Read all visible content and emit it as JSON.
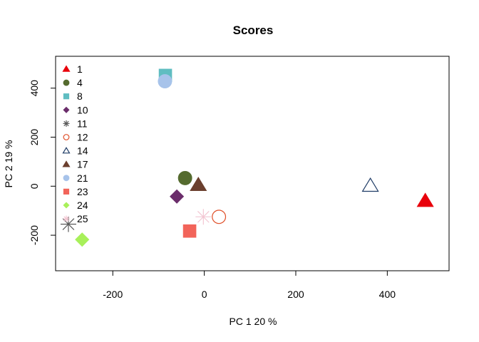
{
  "chart_data": {
    "type": "scatter",
    "title": "Scores",
    "xlabel": "PC 1 20 %",
    "ylabel": "PC 2 19 %",
    "xlim": [
      -325,
      535
    ],
    "ylim": [
      -345,
      530
    ],
    "xticks": [
      -200,
      0,
      200,
      400
    ],
    "yticks": [
      -200,
      0,
      200,
      400
    ],
    "grid": false,
    "legend": "top-left",
    "series": [
      {
        "name": "1",
        "color": "#E8000B",
        "marker": "triangle-filled",
        "x": 483,
        "y": -60
      },
      {
        "name": "4",
        "color": "#556B2F",
        "marker": "circle-filled",
        "x": -42,
        "y": 33
      },
      {
        "name": "8",
        "color": "#5FBDC1",
        "marker": "square-filled",
        "x": -85,
        "y": 452
      },
      {
        "name": "10",
        "color": "#6B2D6B",
        "marker": "diamond-filled",
        "x": -60,
        "y": -42
      },
      {
        "name": "11",
        "color": "#5A5A5A",
        "marker": "star",
        "x": -297,
        "y": -155
      },
      {
        "name": "12",
        "color": "#E0502A",
        "marker": "circle-open",
        "x": 32,
        "y": -125
      },
      {
        "name": "14",
        "color": "#1F3C66",
        "marker": "triangle-open",
        "x": 363,
        "y": 2
      },
      {
        "name": "17",
        "color": "#6B3F2E",
        "marker": "triangle-filled",
        "x": -13,
        "y": 5
      },
      {
        "name": "21",
        "color": "#A7C3EA",
        "marker": "circle-filled",
        "x": -86,
        "y": 428
      },
      {
        "name": "23",
        "color": "#F2645A",
        "marker": "square-filled",
        "x": -32,
        "y": -183
      },
      {
        "name": "24",
        "color": "#A8F05A",
        "marker": "diamond-filled",
        "x": -267,
        "y": -218
      },
      {
        "name": "25",
        "color": "#F3C6D2",
        "marker": "star",
        "x": -2,
        "y": -125
      }
    ]
  }
}
